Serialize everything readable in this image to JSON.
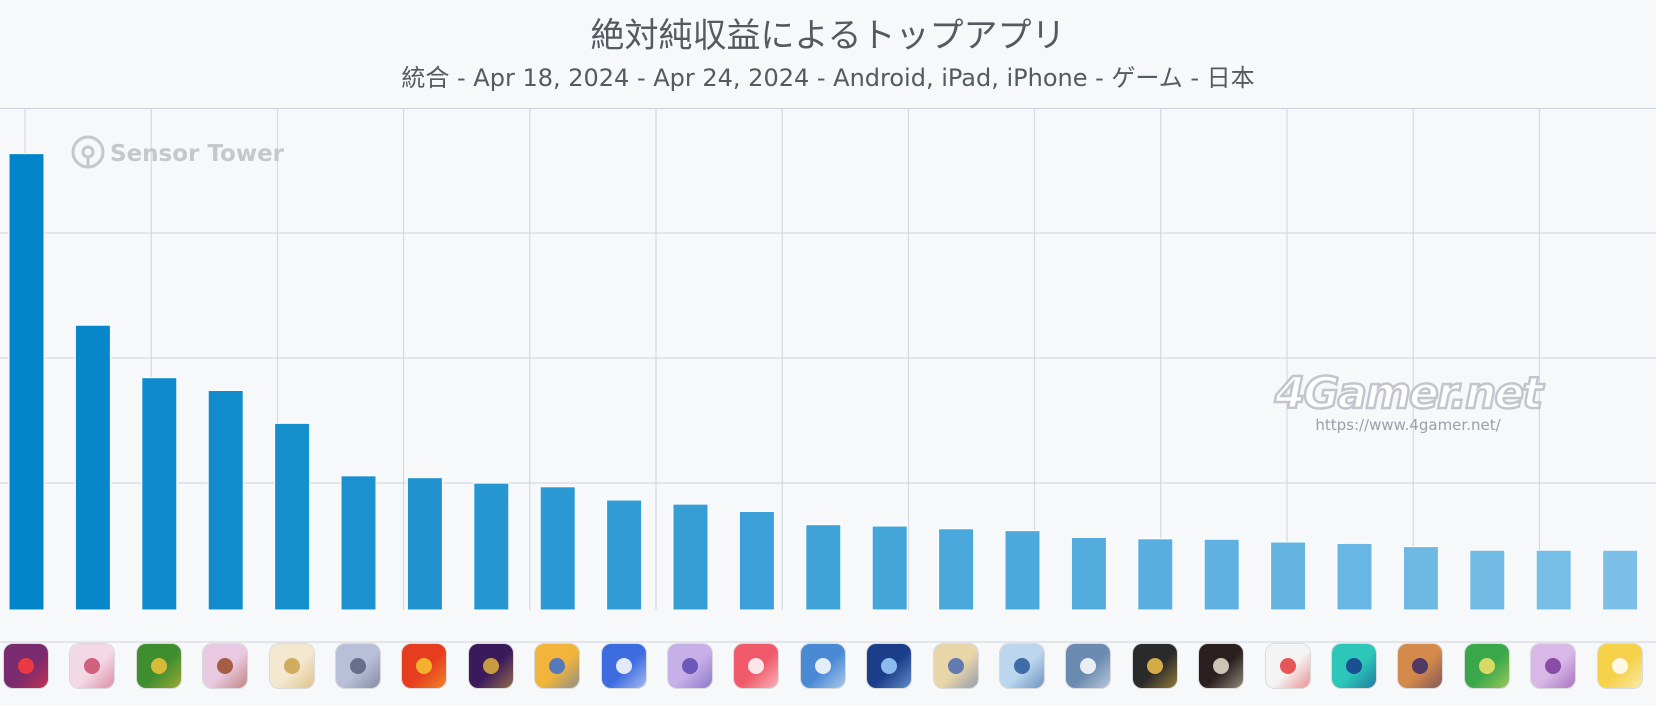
{
  "chart_data": {
    "type": "bar",
    "title": "絶対純収益によるトップアプリ",
    "subtitle": "統合 - Apr 18, 2024 - Apr 24, 2024 - Android, iPad, iPhone - ゲーム - 日本",
    "xlabel": "",
    "ylabel": "",
    "categories": [
      "",
      "",
      "",
      "",
      "",
      "",
      "",
      "",
      "",
      "",
      "",
      "",
      "",
      "",
      "",
      "",
      "",
      "",
      "",
      "",
      "",
      "",
      "",
      "",
      ""
    ],
    "values": [
      100,
      62.4,
      50.9,
      48.1,
      40.9,
      29.4,
      29.0,
      27.8,
      27.0,
      24.1,
      23.2,
      21.6,
      18.7,
      18.4,
      17.8,
      17.4,
      15.9,
      15.6,
      15.5,
      14.9,
      14.6,
      13.9,
      13.1,
      13.1,
      13.1
    ],
    "ylim": [
      0,
      110
    ],
    "grid": true,
    "legend": "none",
    "colors": {
      "bar_top": "#0285c8",
      "bar_bottom": "#7cc0e8",
      "grid": "#cfd4db",
      "axis": "#b8c4d8"
    }
  },
  "watermarks": {
    "sensor_tower": "Sensor Tower",
    "site": "4Gamer.net",
    "site_url": "https://www.4gamer.net/"
  },
  "app_icons": [
    {
      "name": "dragon-game-icon",
      "bg": "#7a2a6e",
      "fg": "#ff3b3b"
    },
    {
      "name": "anime-girl-game-icon",
      "bg": "#f3d9e6",
      "fg": "#c84b6a"
    },
    {
      "name": "mushroom-game-icon",
      "bg": "#3e8d2f",
      "fg": "#f3c23a"
    },
    {
      "name": "anime-character-game-icon",
      "bg": "#e9c9e2",
      "fg": "#9a4a2a"
    },
    {
      "name": "hoyoverse-game-icon",
      "bg": "#f4e8d0",
      "fg": "#c9a24a"
    },
    {
      "name": "silver-hair-game-icon",
      "bg": "#b8bfd6",
      "fg": "#5a5f7c"
    },
    {
      "name": "monster-strike-icon",
      "bg": "#e63d1f",
      "fg": "#f7c531"
    },
    {
      "name": "sports-game-icon",
      "bg": "#3b1a5c",
      "fg": "#e0b23c"
    },
    {
      "name": "clash-game-icon",
      "bg": "#f2b43a",
      "fg": "#3a6fd0"
    },
    {
      "name": "bonus-multiplier-game-icon",
      "bg": "#3d6be0",
      "fg": "#ffffff"
    },
    {
      "name": "horse-girl-game-icon",
      "bg": "#c7b0e8",
      "fg": "#5b4ab0"
    },
    {
      "name": "magic-game-icon",
      "bg": "#f05a6a",
      "fg": "#ffffff"
    },
    {
      "name": "merge-game-icon",
      "bg": "#4a8ad4",
      "fg": "#ffffff"
    },
    {
      "name": "globe-game-icon",
      "bg": "#1c3e8a",
      "fg": "#9ed0ff"
    },
    {
      "name": "knight-girl-game-icon",
      "bg": "#e8d6a8",
      "fg": "#4a6ab0"
    },
    {
      "name": "blue-girl-game-icon",
      "bg": "#bcd6ee",
      "fg": "#2a5a9a"
    },
    {
      "name": "city-game-icon",
      "bg": "#6a8ab0",
      "fg": "#ffffff"
    },
    {
      "name": "now-game-icon",
      "bg": "#2a2a2a",
      "fg": "#f2c24a"
    },
    {
      "name": "hit-game-icon",
      "bg": "#2b1f1f",
      "fg": "#e9e3d0"
    },
    {
      "name": "pokemon-go-icon",
      "bg": "#f4f4f4",
      "fg": "#e33a3a"
    },
    {
      "name": "dragon-quest-slime-icon",
      "bg": "#2cc7b8",
      "fg": "#1a3a8a"
    },
    {
      "name": "anime-adventure-game-icon",
      "bg": "#d48a4a",
      "fg": "#3a2a6a"
    },
    {
      "name": "golf-game-icon",
      "bg": "#3aa84a",
      "fg": "#f4e36a"
    },
    {
      "name": "puzzle-game-icon",
      "bg": "#d9b8e8",
      "fg": "#7a3a9a"
    },
    {
      "name": "cat-game-icon",
      "bg": "#f5d24a",
      "fg": "#ffffff"
    }
  ]
}
